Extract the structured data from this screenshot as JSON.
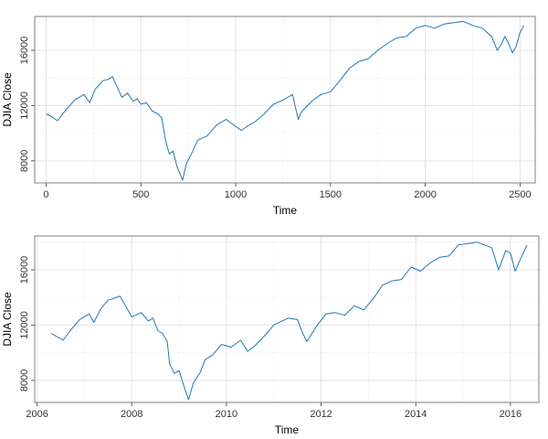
{
  "chart_data": [
    {
      "type": "line",
      "xlabel": "Time",
      "ylabel": "DJIA Close",
      "xlim": [
        -60,
        2580
      ],
      "ylim": [
        6400,
        18450
      ],
      "x_ticks": [
        0,
        500,
        1000,
        1500,
        2000,
        2500
      ],
      "x_tick_labels": [
        "0",
        "500",
        "1000",
        "1500",
        "2000",
        "2500"
      ],
      "y_ticks": [
        8000,
        12000,
        16000
      ],
      "y_tick_labels": [
        "8000",
        "12000",
        "16000"
      ],
      "grid": true,
      "series": [
        {
          "name": "DJIA Close",
          "color": "#1f77b4",
          "x": [
            0,
            30,
            60,
            100,
            150,
            200,
            230,
            260,
            300,
            330,
            350,
            380,
            400,
            430,
            460,
            480,
            500,
            530,
            560,
            590,
            610,
            630,
            650,
            670,
            690,
            720,
            740,
            770,
            800,
            850,
            900,
            950,
            1000,
            1030,
            1060,
            1100,
            1150,
            1200,
            1250,
            1300,
            1330,
            1350,
            1400,
            1450,
            1500,
            1550,
            1600,
            1650,
            1700,
            1750,
            1800,
            1850,
            1900,
            1950,
            2000,
            2050,
            2100,
            2150,
            2200,
            2250,
            2300,
            2350,
            2380,
            2400,
            2420,
            2440,
            2460,
            2480,
            2500,
            2520
          ],
          "y": [
            11400,
            11200,
            10900,
            11600,
            12400,
            12800,
            12200,
            13200,
            13800,
            13900,
            14100,
            13200,
            12600,
            12900,
            12300,
            12500,
            12100,
            12200,
            11600,
            11400,
            11100,
            9500,
            8500,
            8700,
            7600,
            6600,
            7800,
            8600,
            9500,
            9800,
            10600,
            11000,
            10500,
            10200,
            10500,
            10800,
            11400,
            12100,
            12400,
            12800,
            11000,
            11600,
            12300,
            12800,
            13000,
            13800,
            14700,
            15200,
            15400,
            16000,
            16500,
            16900,
            17000,
            17600,
            17800,
            17600,
            17900,
            18000,
            18100,
            17800,
            17600,
            17000,
            16000,
            16400,
            17000,
            16500,
            15800,
            16300,
            17300,
            17800
          ]
        }
      ]
    },
    {
      "type": "line",
      "xlabel": "Time",
      "ylabel": "DJIA Close",
      "xlim": [
        2005.95,
        2016.6
      ],
      "ylim": [
        6400,
        18450
      ],
      "x_ticks": [
        2006,
        2008,
        2010,
        2012,
        2014,
        2016
      ],
      "x_tick_labels": [
        "2006",
        "2008",
        "2010",
        "2012",
        "2014",
        "2016"
      ],
      "y_ticks": [
        8000,
        12000,
        16000
      ],
      "y_tick_labels": [
        "8000",
        "12000",
        "16000"
      ],
      "grid": true,
      "series": [
        {
          "name": "DJIA Close",
          "color": "#1f77b4",
          "x": [
            2006.3,
            2006.4,
            2006.55,
            2006.7,
            2006.9,
            2007.1,
            2007.2,
            2007.35,
            2007.5,
            2007.6,
            2007.75,
            2007.9,
            2008.0,
            2008.2,
            2008.35,
            2008.45,
            2008.55,
            2008.65,
            2008.75,
            2008.8,
            2008.9,
            2009.0,
            2009.1,
            2009.2,
            2009.3,
            2009.45,
            2009.55,
            2009.7,
            2009.9,
            2010.1,
            2010.3,
            2010.45,
            2010.6,
            2010.8,
            2011.0,
            2011.3,
            2011.5,
            2011.6,
            2011.7,
            2011.9,
            2012.1,
            2012.3,
            2012.5,
            2012.7,
            2012.9,
            2013.1,
            2013.3,
            2013.5,
            2013.7,
            2013.9,
            2014.1,
            2014.3,
            2014.5,
            2014.7,
            2014.9,
            2015.1,
            2015.3,
            2015.45,
            2015.6,
            2015.65,
            2015.75,
            2015.9,
            2016.0,
            2016.1,
            2016.2,
            2016.35
          ],
          "y": [
            11400,
            11200,
            10900,
            11600,
            12400,
            12800,
            12200,
            13200,
            13800,
            13900,
            14100,
            13200,
            12600,
            12900,
            12300,
            12500,
            11600,
            11400,
            10800,
            9200,
            8500,
            8700,
            7600,
            6600,
            7800,
            8600,
            9500,
            9800,
            10600,
            10400,
            10900,
            10100,
            10500,
            11200,
            12000,
            12500,
            12400,
            11500,
            10800,
            11900,
            12800,
            12900,
            12700,
            13400,
            13100,
            13900,
            14900,
            15200,
            15300,
            16200,
            15900,
            16500,
            16900,
            17000,
            17800,
            17900,
            18000,
            17800,
            17600,
            17100,
            16000,
            17400,
            17200,
            15900,
            16700,
            17800
          ]
        }
      ]
    }
  ]
}
